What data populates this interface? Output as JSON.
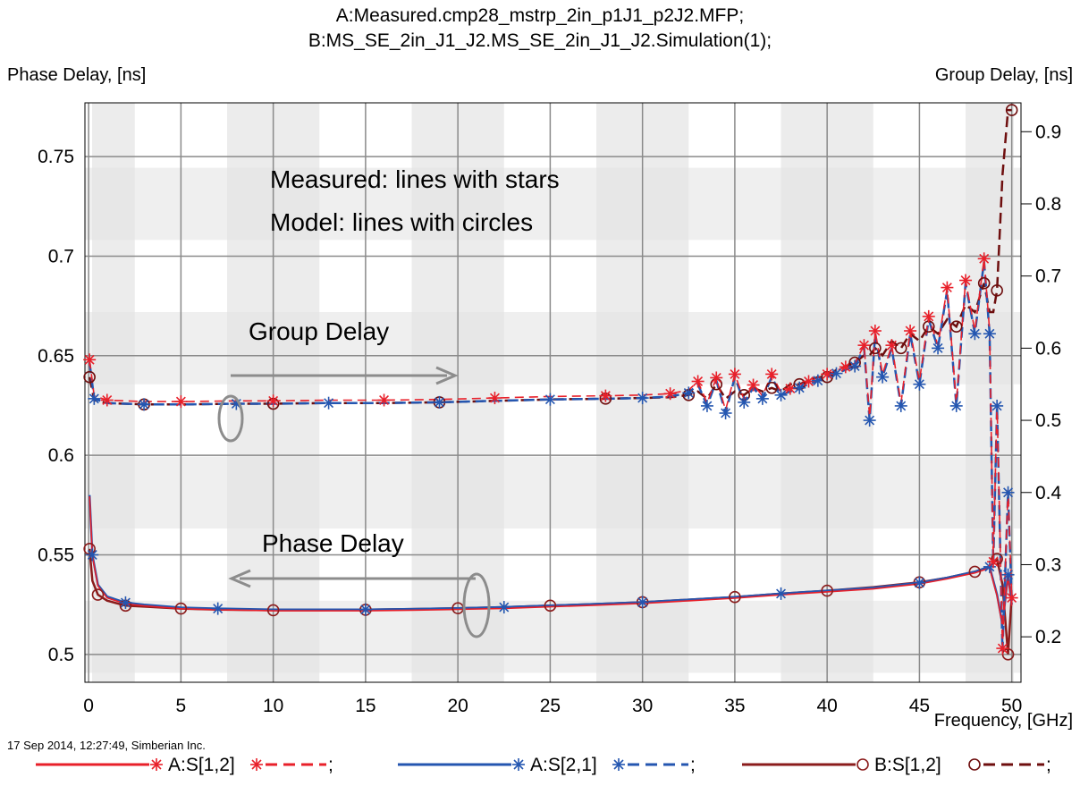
{
  "chart_data": {
    "type": "line",
    "title": [
      "A:Measured.cmp28_mstrp_2in_p1J1_p2J2.MFP;",
      "B:MS_SE_2in_J1_J2.MS_SE_2in_J1_J2.Simulation(1);"
    ],
    "xlabel": "Frequency, [GHz]",
    "ylabel_left": "Phase Delay, [ns]",
    "ylabel_right": "Group Delay, [ns]",
    "xlim": [
      -0.2,
      50.5
    ],
    "ylim_left": [
      0.486,
      0.777
    ],
    "ylim_right": [
      0.137,
      0.94
    ],
    "x_ticks": [
      "0",
      "5",
      "10",
      "15",
      "20",
      "25",
      "30",
      "35",
      "40",
      "45",
      "50"
    ],
    "y_ticks_left": [
      "0.5",
      "0.55",
      "0.6",
      "0.65",
      "0.7",
      "0.75"
    ],
    "y_ticks_right": [
      "0.2",
      "0.3",
      "0.4",
      "0.5",
      "0.6",
      "0.7",
      "0.8",
      "0.9"
    ],
    "grid": true,
    "legend_position": "bottom",
    "footer": "17 Sep 2014, 12:27:49, Simberian Inc.",
    "annotations": {
      "measured_note": "Measured: lines with stars",
      "model_note": "Model: lines with circles",
      "group_label": "Group Delay",
      "phase_label": "Phase Delay"
    },
    "series": [
      {
        "name": "A:S[1,2]",
        "legend_suffix": ";",
        "color": "#e8202a",
        "marker": "star",
        "dashed_color": "#e8202a"
      },
      {
        "name": "A:S[2,1]",
        "legend_suffix": ";",
        "color": "#2456b0",
        "marker": "star",
        "dashed_color": "#2456b0"
      },
      {
        "name": "B:S[1,2]",
        "legend_suffix": ";",
        "color": "#8b1c1c",
        "marker": "circle",
        "dashed_color": "#6e0e0e"
      }
    ],
    "phase_delay": {
      "x": [
        0.05,
        0.2,
        0.5,
        1,
        2,
        3,
        5,
        7,
        10,
        12.5,
        15,
        17.5,
        20,
        22.5,
        25,
        27.5,
        30,
        32.5,
        35,
        37.5,
        40,
        42.5,
        45,
        46.5,
        48,
        48.8,
        49.2,
        49.5,
        49.8,
        50
      ],
      "measured": [
        0.58,
        0.55,
        0.535,
        0.529,
        0.526,
        0.525,
        0.5235,
        0.523,
        0.5225,
        0.5225,
        0.5225,
        0.5228,
        0.5232,
        0.5237,
        0.5245,
        0.5253,
        0.5262,
        0.5275,
        0.5288,
        0.5305,
        0.532,
        0.5335,
        0.536,
        0.5385,
        0.5415,
        0.544,
        0.53,
        0.515,
        0.54,
        0.525
      ],
      "model": [
        0.553,
        0.537,
        0.53,
        0.527,
        0.5245,
        0.524,
        0.523,
        0.5225,
        0.5222,
        0.5222,
        0.5224,
        0.5228,
        0.5232,
        0.5237,
        0.5245,
        0.5253,
        0.5262,
        0.5275,
        0.5288,
        0.5305,
        0.532,
        0.5338,
        0.5362,
        0.5385,
        0.5415,
        0.544,
        0.548,
        0.535,
        0.5,
        0.53
      ]
    },
    "group_delay": {
      "x": [
        0.05,
        0.3,
        1,
        3,
        5,
        8,
        10,
        13,
        16,
        19,
        22,
        25,
        28,
        30,
        31.5,
        32.5,
        33,
        33.5,
        34,
        34.5,
        35,
        35.5,
        36,
        36.5,
        37,
        37.5,
        38,
        38.5,
        39,
        39.5,
        40,
        40.5,
        41,
        41.5,
        42,
        42.3,
        42.6,
        43,
        43.5,
        44,
        44.5,
        45,
        45.5,
        46,
        46.5,
        47,
        47.5,
        48,
        48.5,
        48.8,
        49,
        49.2,
        49.5,
        49.8,
        50
      ],
      "measured": [
        0.58,
        0.53,
        0.524,
        0.522,
        0.522,
        0.523,
        0.523,
        0.524,
        0.524,
        0.525,
        0.527,
        0.529,
        0.53,
        0.531,
        0.533,
        0.538,
        0.55,
        0.52,
        0.555,
        0.51,
        0.56,
        0.525,
        0.545,
        0.53,
        0.56,
        0.535,
        0.54,
        0.545,
        0.55,
        0.555,
        0.56,
        0.565,
        0.57,
        0.575,
        0.6,
        0.5,
        0.62,
        0.56,
        0.6,
        0.52,
        0.62,
        0.55,
        0.64,
        0.6,
        0.68,
        0.52,
        0.69,
        0.62,
        0.72,
        0.62,
        0.3,
        0.52,
        0.18,
        0.4,
        0.25
      ],
      "model": [
        0.56,
        0.528,
        0.524,
        0.522,
        0.522,
        0.523,
        0.523,
        0.524,
        0.524,
        0.525,
        0.527,
        0.529,
        0.53,
        0.531,
        0.532,
        0.535,
        0.54,
        0.53,
        0.55,
        0.53,
        0.54,
        0.535,
        0.545,
        0.54,
        0.545,
        0.54,
        0.55,
        0.55,
        0.555,
        0.56,
        0.56,
        0.57,
        0.575,
        0.58,
        0.59,
        0.59,
        0.6,
        0.59,
        0.61,
        0.6,
        0.62,
        0.61,
        0.63,
        0.62,
        0.64,
        0.63,
        0.66,
        0.65,
        0.69,
        0.65,
        0.65,
        0.68,
        0.84,
        0.93,
        0.93
      ]
    }
  }
}
